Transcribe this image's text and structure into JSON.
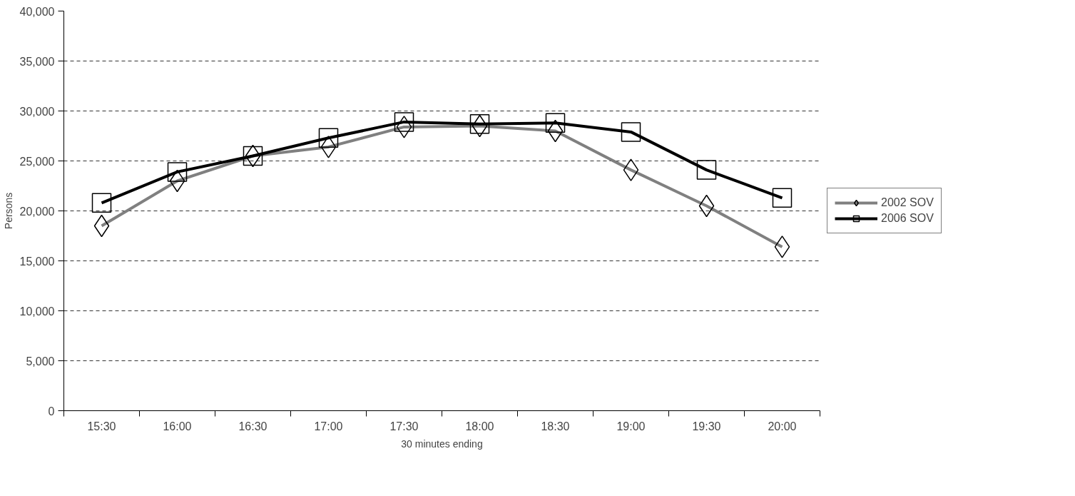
{
  "chart_data": {
    "type": "line",
    "xlabel": "30 minutes ending",
    "ylabel": "Persons",
    "categories": [
      "15:30",
      "16:00",
      "16:30",
      "17:00",
      "17:30",
      "18:00",
      "18:30",
      "19:00",
      "19:30",
      "20:00"
    ],
    "series": [
      {
        "name": "2002 SOV",
        "color": "#808080",
        "marker": "diamond",
        "values": [
          18500,
          23000,
          25500,
          26400,
          28400,
          28500,
          28000,
          24100,
          20500,
          16400
        ]
      },
      {
        "name": "2006 SOV",
        "color": "#000000",
        "marker": "square",
        "values": [
          20800,
          23900,
          25500,
          27300,
          28900,
          28700,
          28800,
          27900,
          24100,
          21300
        ]
      }
    ],
    "ylim": [
      0,
      40000
    ],
    "yticks": [
      {
        "value": 0,
        "label": "0"
      },
      {
        "value": 5000,
        "label": "5,000"
      },
      {
        "value": 10000,
        "label": "10,000"
      },
      {
        "value": 15000,
        "label": "15,000"
      },
      {
        "value": 20000,
        "label": "20,000"
      },
      {
        "value": 25000,
        "label": "25,000"
      },
      {
        "value": 30000,
        "label": "30,000"
      },
      {
        "value": 35000,
        "label": "35,000"
      },
      {
        "value": 40000,
        "label": "40,000"
      }
    ],
    "grid": "y",
    "legend": "right",
    "line_style": "solid"
  }
}
